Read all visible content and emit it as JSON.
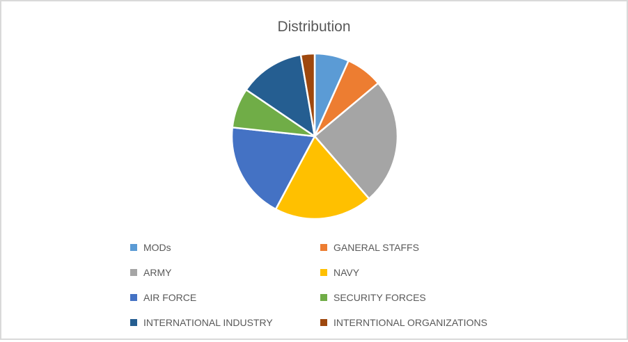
{
  "chart_data": {
    "type": "pie",
    "title": "Distribution",
    "labels": [
      "MODs",
      "GANERAL STAFFS",
      "ARMY",
      "NAVY",
      "AIR FORCE",
      "SECURITY FORCES",
      "INTERNATIONAL INDUSTRY",
      "INTERNTIONAL ORGANIZATIONS"
    ],
    "values": [
      6.7,
      7.2,
      24.7,
      19.2,
      18.9,
      7.8,
      12.8,
      2.7
    ],
    "unit": "percent",
    "colors": [
      "#5B9BD5",
      "#ED7D31",
      "#A5A5A5",
      "#FFC000",
      "#4472C4",
      "#70AD47",
      "#255E91",
      "#9E480E"
    ],
    "start_angle_deg": 0,
    "direction": "clockwise",
    "slice_border_color": "#FFFFFF",
    "legend_position": "bottom",
    "legend_columns": 2
  },
  "styles": {
    "title_color": "#595959",
    "legend_text_color": "#595959",
    "background_color": "#FFFFFF",
    "frame_border_color": "#D9D9D9"
  }
}
